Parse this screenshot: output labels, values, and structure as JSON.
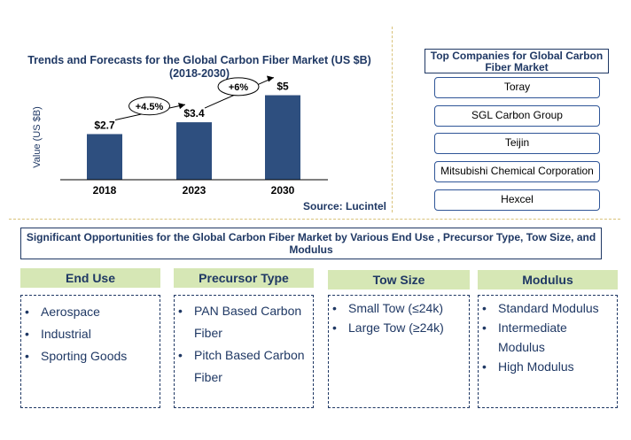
{
  "chart_data": {
    "type": "bar",
    "title": "Trends and Forecasts for the Global Carbon Fiber Market (US $B)",
    "subtitle": "(2018-2030)",
    "ylabel": "Value (US $B)",
    "xlabel": "",
    "categories": [
      "2018",
      "2023",
      "2030"
    ],
    "values": [
      2.7,
      3.4,
      5
    ],
    "data_labels": [
      "$2.7",
      "$3.4",
      "$5"
    ],
    "growth_annotations": [
      {
        "from": "2018",
        "to": "2023",
        "label": "+4.5%"
      },
      {
        "from": "2023",
        "to": "2030",
        "label": "+6%"
      }
    ],
    "ylim": [
      0,
      5.5
    ],
    "grid": false,
    "bar_color": "#2e4f7f",
    "source": "Source: Lucintel"
  },
  "companies": {
    "title": "Top Companies for Global Carbon Fiber Market",
    "items": [
      "Toray",
      "SGL Carbon Group",
      "Teijin",
      "Mitsubishi Chemical Corporation",
      "Hexcel"
    ]
  },
  "opportunities": {
    "title": "Significant Opportunities for the Global Carbon Fiber Market by Various End Use , Precursor Type, Tow Size, and Modulus",
    "categories": [
      {
        "header": "End Use",
        "items": [
          "Aerospace",
          "Industrial",
          "Sporting Goods"
        ]
      },
      {
        "header": "Precursor Type",
        "items": [
          "PAN Based Carbon Fiber",
          "Pitch Based Carbon Fiber"
        ]
      },
      {
        "header": "Tow Size",
        "items": [
          "Small Tow (≤24k)",
          "Large Tow (≥24k)"
        ]
      },
      {
        "header": "Modulus",
        "items": [
          "Standard Modulus",
          "Intermediate Modulus",
          "High Modulus"
        ]
      }
    ]
  },
  "colors": {
    "title": "#1f3864",
    "header_bg": "#d6e7b5",
    "divider": "#d9c27a"
  }
}
